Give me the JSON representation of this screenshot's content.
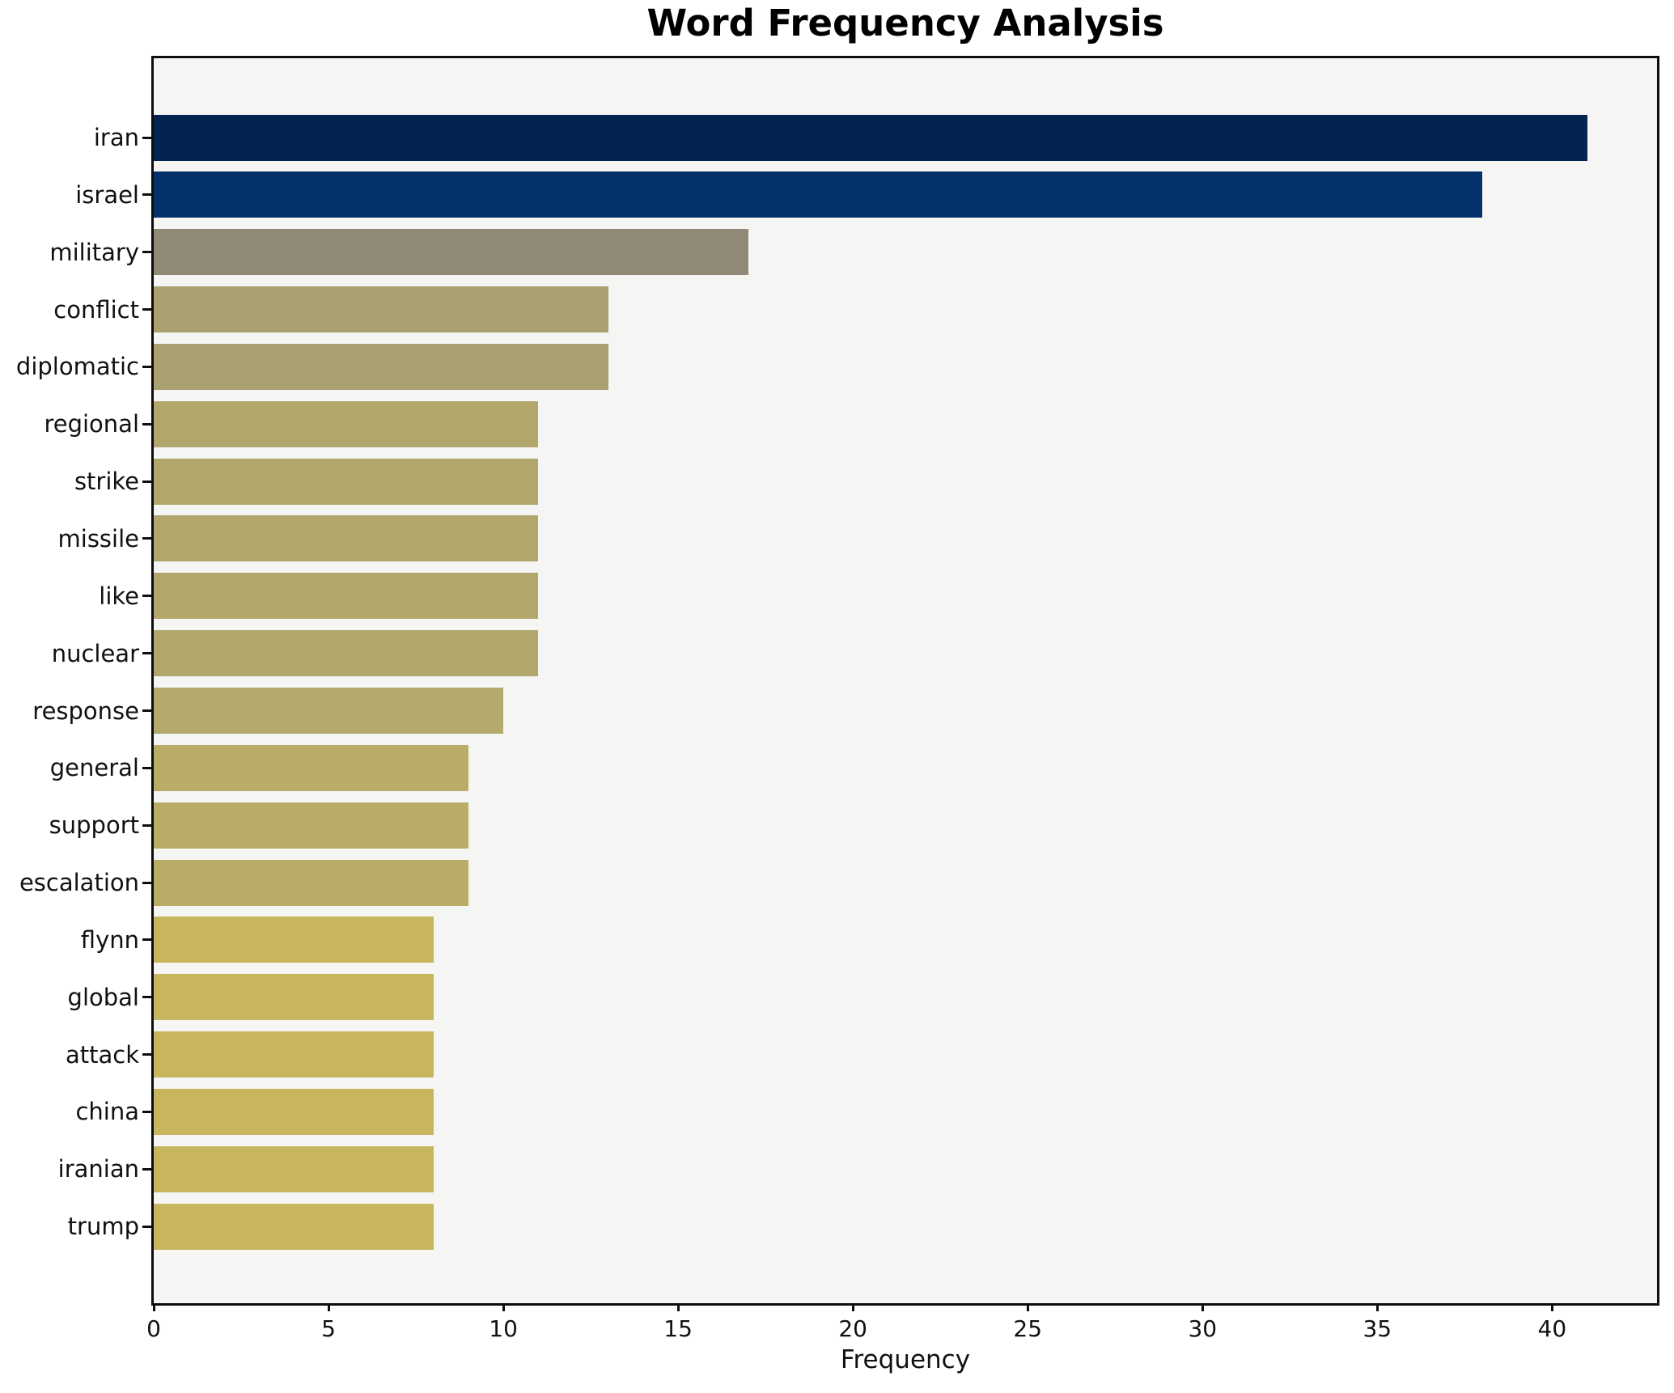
{
  "chart_data": {
    "type": "bar",
    "orientation": "horizontal",
    "title": "Word Frequency Analysis",
    "xlabel": "Frequency",
    "ylabel": "",
    "categories": [
      "iran",
      "israel",
      "military",
      "conflict",
      "diplomatic",
      "regional",
      "strike",
      "missile",
      "like",
      "nuclear",
      "response",
      "general",
      "support",
      "escalation",
      "flynn",
      "global",
      "attack",
      "china",
      "iranian",
      "trump"
    ],
    "values": [
      41,
      38,
      17,
      13,
      13,
      11,
      11,
      11,
      11,
      11,
      10,
      9,
      9,
      9,
      8,
      8,
      8,
      8,
      8,
      8
    ],
    "bar_colors": [
      "#032450",
      "#05316b",
      "#8f8976",
      "#aba070",
      "#aba070",
      "#b1a76c",
      "#b1a76c",
      "#b1a76c",
      "#b1a76c",
      "#b1a76c",
      "#b4a96c",
      "#b8ac67",
      "#b8ac67",
      "#b8ac67",
      "#c8b65f",
      "#c8b65f",
      "#c8b65f",
      "#c8b65f",
      "#c8b65f",
      "#c8b65f"
    ],
    "xlim": [
      0,
      43
    ],
    "x_ticks": [
      0,
      5,
      10,
      15,
      20,
      25,
      30,
      35,
      40
    ],
    "grid": false,
    "legend_position": "none",
    "plot_background": "#f5f5f3",
    "figure_background": "#ffffff",
    "spine_color": "#0e0e0e",
    "text_color": "#111111"
  }
}
